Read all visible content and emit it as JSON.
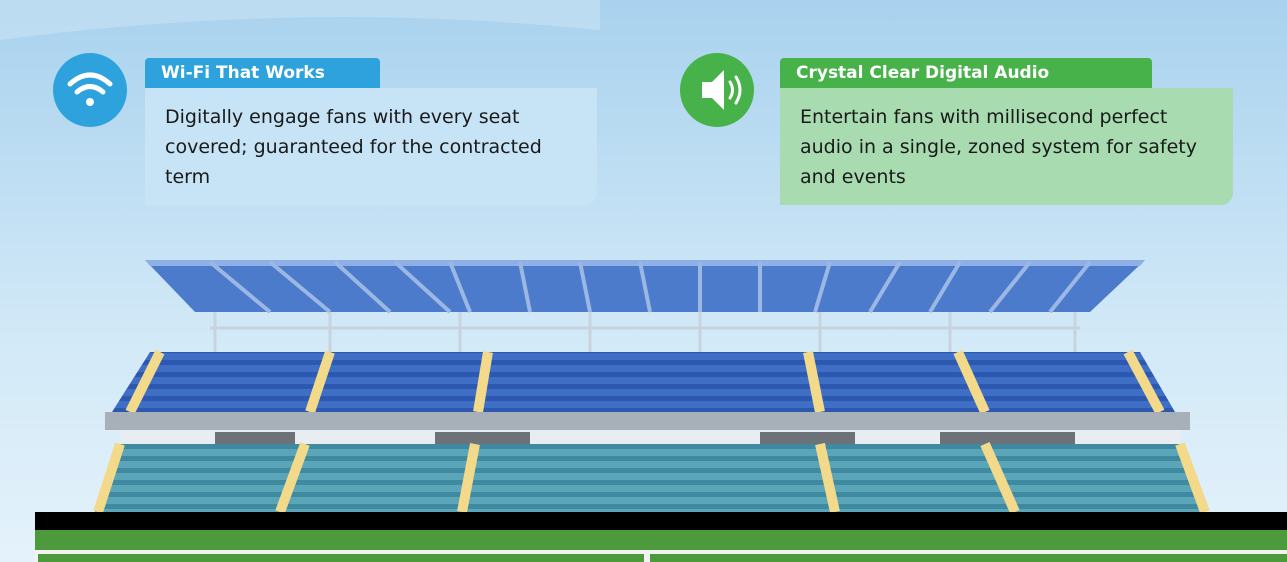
{
  "cards": [
    {
      "title": "Wi-Fi That Works",
      "text": "Digitally engage fans with every seat covered; guaranteed for the contracted term"
    },
    {
      "title": "Crystal Clear Digital Audio",
      "text": "Entertain fans with millisecond perfect audio in a single, zoned system for safety and events"
    }
  ]
}
